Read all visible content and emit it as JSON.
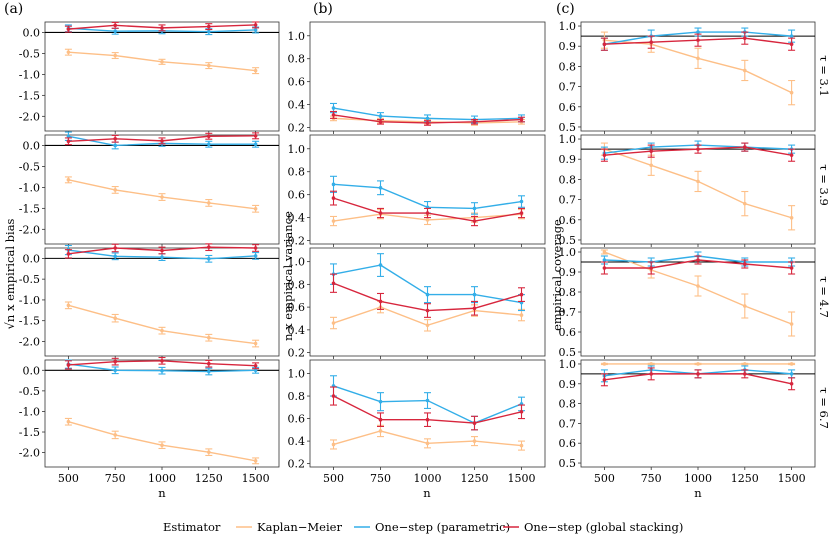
{
  "chart_data": {
    "type": "line",
    "x": [
      500,
      750,
      1000,
      1250,
      1500
    ],
    "xlabel": "n",
    "xticks": [
      "500",
      "750",
      "1000",
      "1250",
      "1500"
    ],
    "xlim": [
      375,
      1625
    ],
    "column_labels": [
      "(a)",
      "(b)",
      "(c)"
    ],
    "ylabels": [
      "√n x empirical bias",
      "n x empirical variance",
      "empirical coverage"
    ],
    "row_labels": [
      "τ = 3.1",
      "τ = 3.9",
      "τ = 4.7",
      "τ = 6.7"
    ],
    "columns": [
      {
        "ylim": [
          -2.35,
          0.25
        ],
        "yticks": [
          "0.0",
          "-0.5",
          "-1.0",
          "-1.5",
          "-2.0"
        ],
        "yvals": [
          0,
          -0.5,
          -1.0,
          -1.5,
          -2.0
        ],
        "reference_line": 0
      },
      {
        "ylim": [
          0.17,
          1.12
        ],
        "yticks": [
          "1.0",
          "0.8",
          "0.6",
          "0.4",
          "0.2"
        ],
        "yvals": [
          1.0,
          0.8,
          0.6,
          0.4,
          0.2
        ]
      },
      {
        "ylim": [
          0.48,
          1.02
        ],
        "yticks": [
          "1.0",
          "0.9",
          "0.8",
          "0.7",
          "0.6",
          "0.5"
        ],
        "yvals": [
          1.0,
          0.9,
          0.8,
          0.7,
          0.6,
          0.5
        ],
        "reference_line": 0.95
      }
    ],
    "series": [
      {
        "name": "Kaplan−Meier",
        "color": "#fdbf87",
        "values": [
          [
            [
              -0.47,
              -0.55,
              -0.7,
              -0.79,
              -0.91
            ],
            [
              0.28,
              0.26,
              0.25,
              0.24,
              0.25
            ],
            [
              0.93,
              0.91,
              0.84,
              0.78,
              0.67
            ]
          ],
          [
            [
              -0.82,
              -1.06,
              -1.23,
              -1.37,
              -1.51
            ],
            [
              0.37,
              0.43,
              0.38,
              0.4,
              0.43
            ],
            [
              0.95,
              0.87,
              0.79,
              0.68,
              0.61
            ]
          ],
          [
            [
              -1.13,
              -1.44,
              -1.74,
              -1.91,
              -2.05
            ],
            [
              0.46,
              0.6,
              0.44,
              0.57,
              0.53
            ],
            [
              1.0,
              0.91,
              0.83,
              0.73,
              0.64
            ]
          ],
          [
            [
              -1.25,
              -1.57,
              -1.82,
              -1.99,
              -2.2
            ],
            [
              0.37,
              0.49,
              0.38,
              0.4,
              0.36
            ],
            [
              1.0,
              1.0,
              1.0,
              1.0,
              1.0
            ]
          ]
        ],
        "errors": [
          [
            [
              0.07,
              0.07,
              0.06,
              0.07,
              0.07
            ],
            [
              0.02,
              0.02,
              0.02,
              0.02,
              0.02
            ],
            [
              0.04,
              0.04,
              0.05,
              0.05,
              0.06
            ]
          ],
          [
            [
              0.07,
              0.08,
              0.08,
              0.08,
              0.08
            ],
            [
              0.04,
              0.04,
              0.04,
              0.04,
              0.04
            ],
            [
              0.03,
              0.05,
              0.05,
              0.06,
              0.06
            ]
          ],
          [
            [
              0.08,
              0.09,
              0.08,
              0.08,
              0.08
            ],
            [
              0.05,
              0.05,
              0.05,
              0.05,
              0.05
            ],
            [
              0.01,
              0.04,
              0.05,
              0.06,
              0.06
            ]
          ],
          [
            [
              0.08,
              0.09,
              0.08,
              0.08,
              0.07
            ],
            [
              0.04,
              0.05,
              0.04,
              0.04,
              0.04
            ],
            [
              0.003,
              0.003,
              0.003,
              0.003,
              0.003
            ]
          ]
        ]
      },
      {
        "name": "One−step (parametric)",
        "color": "#33aee8",
        "values": [
          [
            [
              0.1,
              0.03,
              0.04,
              0.02,
              0.06
            ],
            [
              0.37,
              0.3,
              0.28,
              0.27,
              0.28
            ],
            [
              0.91,
              0.95,
              0.97,
              0.97,
              0.95
            ]
          ],
          [
            [
              0.22,
              0.0,
              0.05,
              0.03,
              0.03
            ],
            [
              0.69,
              0.66,
              0.49,
              0.48,
              0.54
            ],
            [
              0.93,
              0.96,
              0.97,
              0.96,
              0.95
            ]
          ],
          [
            [
              0.2,
              0.05,
              0.03,
              -0.01,
              0.06
            ],
            [
              0.89,
              0.97,
              0.71,
              0.71,
              0.64
            ],
            [
              0.96,
              0.95,
              0.98,
              0.95,
              0.95
            ]
          ],
          [
            [
              0.15,
              0.0,
              -0.01,
              -0.03,
              0.0
            ],
            [
              0.89,
              0.75,
              0.76,
              0.56,
              0.73
            ],
            [
              0.94,
              0.97,
              0.95,
              0.97,
              0.95
            ]
          ]
        ],
        "errors": [
          [
            [
              0.08,
              0.07,
              0.07,
              0.07,
              0.07
            ],
            [
              0.04,
              0.03,
              0.03,
              0.03,
              0.03
            ],
            [
              0.03,
              0.03,
              0.02,
              0.02,
              0.03
            ]
          ],
          [
            [
              0.1,
              0.08,
              0.07,
              0.07,
              0.07
            ],
            [
              0.07,
              0.06,
              0.05,
              0.05,
              0.05
            ],
            [
              0.03,
              0.02,
              0.02,
              0.02,
              0.02
            ]
          ],
          [
            [
              0.11,
              0.08,
              0.08,
              0.08,
              0.08
            ],
            [
              0.09,
              0.1,
              0.07,
              0.07,
              0.07
            ],
            [
              0.02,
              0.02,
              0.02,
              0.02,
              0.02
            ]
          ],
          [
            [
              0.1,
              0.08,
              0.08,
              0.08,
              0.07
            ],
            [
              0.09,
              0.08,
              0.07,
              0.06,
              0.06
            ],
            [
              0.03,
              0.02,
              0.02,
              0.02,
              0.02
            ]
          ]
        ]
      },
      {
        "name": "One−step (global stacking)",
        "color": "#d7263d",
        "values": [
          [
            [
              0.08,
              0.17,
              0.11,
              0.14,
              0.18
            ],
            [
              0.31,
              0.25,
              0.24,
              0.25,
              0.27
            ],
            [
              0.91,
              0.92,
              0.93,
              0.94,
              0.91
            ]
          ],
          [
            [
              0.1,
              0.16,
              0.11,
              0.22,
              0.23
            ],
            [
              0.57,
              0.44,
              0.44,
              0.37,
              0.44
            ],
            [
              0.92,
              0.94,
              0.95,
              0.96,
              0.92
            ]
          ],
          [
            [
              0.11,
              0.25,
              0.19,
              0.27,
              0.25
            ],
            [
              0.81,
              0.65,
              0.57,
              0.59,
              0.71
            ],
            [
              0.92,
              0.92,
              0.96,
              0.94,
              0.92
            ]
          ],
          [
            [
              0.13,
              0.21,
              0.23,
              0.16,
              0.11
            ],
            [
              0.8,
              0.59,
              0.59,
              0.56,
              0.66
            ],
            [
              0.92,
              0.95,
              0.95,
              0.95,
              0.9
            ]
          ]
        ],
        "errors": [
          [
            [
              0.07,
              0.07,
              0.07,
              0.07,
              0.07
            ],
            [
              0.03,
              0.02,
              0.02,
              0.02,
              0.02
            ],
            [
              0.03,
              0.03,
              0.03,
              0.03,
              0.03
            ]
          ],
          [
            [
              0.08,
              0.08,
              0.07,
              0.07,
              0.07
            ],
            [
              0.06,
              0.04,
              0.04,
              0.04,
              0.04
            ],
            [
              0.03,
              0.03,
              0.02,
              0.02,
              0.03
            ]
          ],
          [
            [
              0.1,
              0.09,
              0.08,
              0.08,
              0.08
            ],
            [
              0.08,
              0.07,
              0.06,
              0.06,
              0.06
            ],
            [
              0.03,
              0.03,
              0.02,
              0.02,
              0.03
            ]
          ],
          [
            [
              0.1,
              0.08,
              0.08,
              0.08,
              0.07
            ],
            [
              0.08,
              0.06,
              0.06,
              0.06,
              0.06
            ],
            [
              0.03,
              0.03,
              0.02,
              0.02,
              0.03
            ]
          ]
        ]
      }
    ],
    "legend": {
      "title": "Estimator",
      "position": "bottom",
      "entries": [
        "Kaplan−Meier",
        "One−step (parametric)",
        "One−step (global stacking)"
      ]
    }
  }
}
